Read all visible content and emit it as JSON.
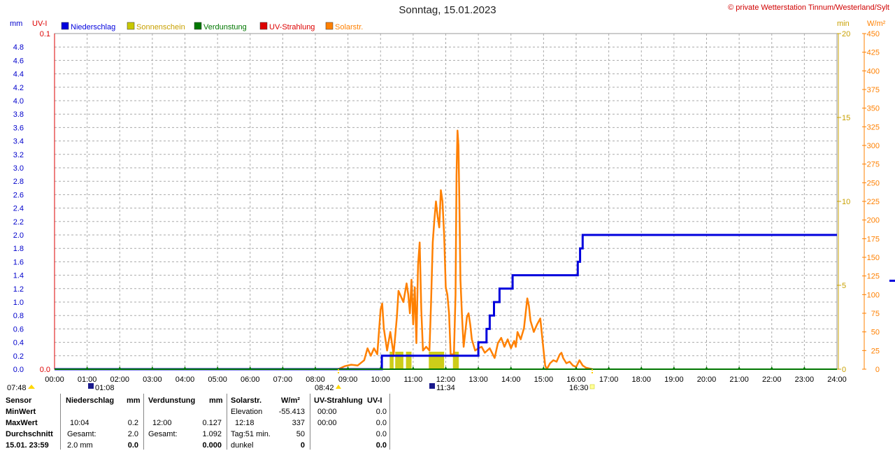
{
  "header": {
    "title": "Sonntag, 15.01.2023",
    "copyright": "© private Wetterstation Tinnum/Westerland/Sylt",
    "unit_mm": "mm",
    "unit_uv": "UV-I",
    "unit_min": "min",
    "unit_wm2": "W/m²"
  },
  "legend": [
    {
      "label": "Niederschlag",
      "color": "#0000dd"
    },
    {
      "label": "Sonnenschein",
      "color": "#c8c800"
    },
    {
      "label": "Verdunstung",
      "color": "#007700"
    },
    {
      "label": "UV-Strahlung",
      "color": "#dd0000"
    },
    {
      "label": "Solarstr.",
      "color": "#ff8000"
    }
  ],
  "chart_data": {
    "type": "line",
    "title": "Sonntag, 15.01.2023",
    "x_ticks": [
      "00:00",
      "01:00",
      "02:00",
      "03:00",
      "04:00",
      "05:00",
      "06:00",
      "07:00",
      "08:00",
      "09:00",
      "10:00",
      "11:00",
      "12:00",
      "13:00",
      "14:00",
      "15:00",
      "16:00",
      "17:00",
      "18:00",
      "19:00",
      "20:00",
      "21:00",
      "22:00",
      "23:00",
      "24:00"
    ],
    "xlim": [
      0,
      24
    ],
    "y_left_mm": {
      "ylim": [
        0,
        5.0
      ],
      "ticks": [
        "0.0",
        "0.2",
        "0.4",
        "0.6",
        "0.8",
        "1.0",
        "1.2",
        "1.4",
        "1.6",
        "1.8",
        "2.0",
        "2.2",
        "2.4",
        "2.6",
        "2.8",
        "3.0",
        "3.2",
        "3.4",
        "3.6",
        "3.8",
        "4.0",
        "4.2",
        "4.4",
        "4.6",
        "4.8"
      ]
    },
    "y_left_uv": {
      "ylim": [
        0,
        0.1
      ],
      "ticks": [
        "0.0",
        "0.1"
      ]
    },
    "y_right_min": {
      "ylim": [
        0,
        20
      ],
      "ticks": [
        "0",
        "5",
        "10",
        "15",
        "20"
      ]
    },
    "y_right_wm2": {
      "ylim": [
        0,
        450
      ],
      "ticks": [
        "0",
        "25",
        "50",
        "75",
        "100",
        "125",
        "150",
        "175",
        "200",
        "225",
        "250",
        "275",
        "300",
        "325",
        "350",
        "375",
        "400",
        "425",
        "450"
      ]
    },
    "grid": true,
    "series": [
      {
        "name": "Niederschlag",
        "unit": "mm",
        "color": "#0000dd",
        "step": true,
        "points": [
          [
            0,
            0
          ],
          [
            10.04,
            0
          ],
          [
            10.04,
            0.2
          ],
          [
            13.0,
            0.2
          ],
          [
            13.0,
            0.4
          ],
          [
            13.25,
            0.4
          ],
          [
            13.25,
            0.6
          ],
          [
            13.35,
            0.6
          ],
          [
            13.35,
            0.8
          ],
          [
            13.48,
            0.8
          ],
          [
            13.48,
            1.0
          ],
          [
            13.65,
            1.0
          ],
          [
            13.65,
            1.2
          ],
          [
            14.05,
            1.2
          ],
          [
            14.05,
            1.4
          ],
          [
            16.05,
            1.4
          ],
          [
            16.05,
            1.6
          ],
          [
            16.12,
            1.6
          ],
          [
            16.12,
            1.8
          ],
          [
            16.2,
            1.8
          ],
          [
            16.2,
            2.0
          ],
          [
            24,
            2.0
          ]
        ]
      },
      {
        "name": "Solarstr.",
        "unit": "W/m²",
        "color": "#ff8000",
        "points": [
          [
            8.7,
            0
          ],
          [
            8.9,
            4
          ],
          [
            9.1,
            6
          ],
          [
            9.3,
            5
          ],
          [
            9.5,
            12
          ],
          [
            9.6,
            28
          ],
          [
            9.7,
            18
          ],
          [
            9.8,
            28
          ],
          [
            9.9,
            20
          ],
          [
            10.0,
            80
          ],
          [
            10.05,
            88
          ],
          [
            10.1,
            55
          ],
          [
            10.2,
            25
          ],
          [
            10.3,
            50
          ],
          [
            10.4,
            20
          ],
          [
            10.5,
            70
          ],
          [
            10.55,
            105
          ],
          [
            10.6,
            100
          ],
          [
            10.7,
            90
          ],
          [
            10.8,
            115
          ],
          [
            10.85,
            100
          ],
          [
            10.9,
            75
          ],
          [
            10.95,
            120
          ],
          [
            11.0,
            60
          ],
          [
            11.05,
            110
          ],
          [
            11.1,
            35
          ],
          [
            11.15,
            140
          ],
          [
            11.2,
            170
          ],
          [
            11.25,
            80
          ],
          [
            11.3,
            25
          ],
          [
            11.4,
            30
          ],
          [
            11.5,
            25
          ],
          [
            11.55,
            90
          ],
          [
            11.6,
            170
          ],
          [
            11.65,
            200
          ],
          [
            11.7,
            225
          ],
          [
            11.75,
            205
          ],
          [
            11.8,
            190
          ],
          [
            11.85,
            240
          ],
          [
            11.9,
            225
          ],
          [
            11.95,
            180
          ],
          [
            12.0,
            110
          ],
          [
            12.05,
            100
          ],
          [
            12.1,
            75
          ],
          [
            12.15,
            20
          ],
          [
            12.25,
            20
          ],
          [
            12.3,
            100
          ],
          [
            12.33,
            260
          ],
          [
            12.36,
            320
          ],
          [
            12.39,
            300
          ],
          [
            12.42,
            215
          ],
          [
            12.45,
            120
          ],
          [
            12.5,
            70
          ],
          [
            12.55,
            30
          ],
          [
            12.65,
            70
          ],
          [
            12.7,
            75
          ],
          [
            12.75,
            60
          ],
          [
            12.8,
            40
          ],
          [
            12.9,
            25
          ],
          [
            13.0,
            28
          ],
          [
            13.1,
            30
          ],
          [
            13.2,
            22
          ],
          [
            13.35,
            28
          ],
          [
            13.5,
            15
          ],
          [
            13.6,
            35
          ],
          [
            13.7,
            42
          ],
          [
            13.8,
            30
          ],
          [
            13.9,
            40
          ],
          [
            14.0,
            28
          ],
          [
            14.1,
            38
          ],
          [
            14.15,
            30
          ],
          [
            14.2,
            50
          ],
          [
            14.3,
            40
          ],
          [
            14.4,
            55
          ],
          [
            14.5,
            95
          ],
          [
            14.55,
            85
          ],
          [
            14.6,
            65
          ],
          [
            14.7,
            50
          ],
          [
            14.8,
            60
          ],
          [
            14.9,
            68
          ],
          [
            15.0,
            25
          ],
          [
            15.05,
            5
          ],
          [
            15.1,
            0
          ],
          [
            15.2,
            8
          ],
          [
            15.3,
            12
          ],
          [
            15.4,
            10
          ],
          [
            15.5,
            20
          ],
          [
            15.55,
            22
          ],
          [
            15.6,
            15
          ],
          [
            15.7,
            8
          ],
          [
            15.8,
            10
          ],
          [
            15.9,
            5
          ],
          [
            16.0,
            3
          ],
          [
            16.1,
            12
          ],
          [
            16.2,
            5
          ],
          [
            16.3,
            2
          ],
          [
            16.5,
            0
          ]
        ]
      },
      {
        "name": "Sonnenschein",
        "unit": "min",
        "color": "#c8c800",
        "type": "bar",
        "bars": [
          [
            10.28,
            10.4,
            1
          ],
          [
            10.45,
            10.7,
            1
          ],
          [
            10.78,
            10.95,
            1
          ],
          [
            11.48,
            11.95,
            1
          ],
          [
            12.22,
            12.4,
            1
          ]
        ]
      },
      {
        "name": "Verdunstung",
        "unit": "mm",
        "color": "#007700",
        "values_all": 0
      },
      {
        "name": "UV-Strahlung",
        "unit": "UV-I",
        "color": "#dd0000",
        "values_all": 0
      }
    ]
  },
  "below_axis": {
    "left_time": "07:48",
    "moon_time": "01:08",
    "sunrise": "08:42",
    "noon_moon": "11:34",
    "sunset": "16:30"
  },
  "stats": {
    "rows": [
      "Sensor",
      "MinWert",
      "MaxWert",
      "Durchschnitt",
      "15.01. 23:59"
    ],
    "niederschlag": {
      "head": "Niederschlag",
      "unit": "mm",
      "max_time": "10:04",
      "max": "0.2",
      "total_label": "Gesamt:",
      "total": "2.0",
      "last_val": "2.0 mm",
      "last": "0.0"
    },
    "verdunstung": {
      "head": "Verdunstung",
      "unit": "mm",
      "max_time": "12:00",
      "max": "0.127",
      "total_label": "Gesamt:",
      "total": "1.092",
      "last": "0.000"
    },
    "solar": {
      "head": "Solarstr.",
      "unit": "W/m²",
      "elev_label": "Elevation",
      "elev": "-55.413",
      "max_time": "12:18",
      "max": "337",
      "tag_label": "Tag:51 min.",
      "tag": "50",
      "dunkel_label": "dunkel",
      "dunkel": "0"
    },
    "uv": {
      "head": "UV-Strahlung",
      "unit": "UV-I",
      "min_time": "00:00",
      "min": "0.0",
      "max_time": "00:00",
      "max": "0.0",
      "avg": "0.0",
      "last": "0.0"
    }
  }
}
